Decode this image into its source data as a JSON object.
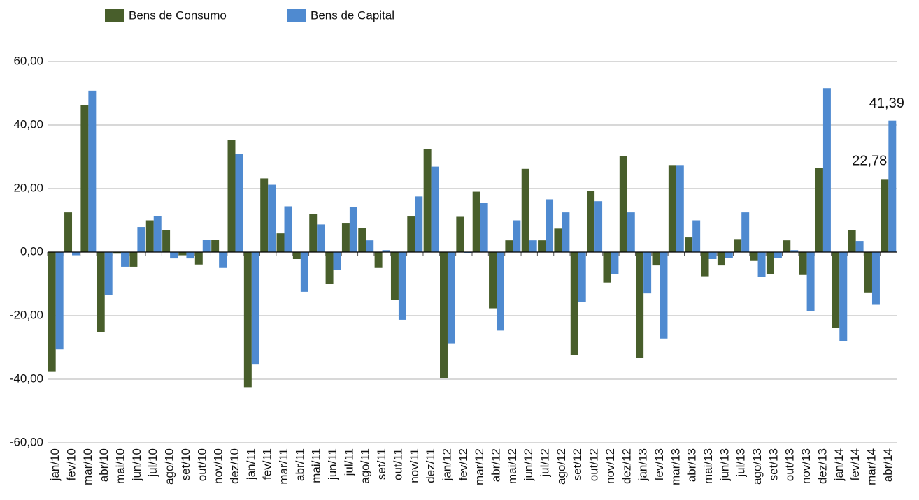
{
  "chart_data": {
    "type": "bar",
    "categories": [
      "jan/10",
      "fev/10",
      "mar/10",
      "abr/10",
      "mai/10",
      "jun/10",
      "jul/10",
      "ago/10",
      "set/10",
      "out/10",
      "nov/10",
      "dez/10",
      "jan/11",
      "fev/11",
      "mar/11",
      "abr/11",
      "mai/11",
      "jun/11",
      "jul/11",
      "ago/11",
      "set/11",
      "out/11",
      "nov/11",
      "dez/11",
      "jan/12",
      "fev/12",
      "mar/12",
      "abr/12",
      "mai/12",
      "jun/12",
      "jul/12",
      "ago/12",
      "set/12",
      "out/12",
      "nov/12",
      "dez/12",
      "jan/13",
      "fev/13",
      "mar/13",
      "abr/13",
      "mai/13",
      "jun/13",
      "jul/13",
      "ago/13",
      "set/13",
      "out/13",
      "nov/13",
      "dez/13",
      "jan/14",
      "fev/14",
      "mar/14",
      "abr/14"
    ],
    "series": [
      {
        "name": "Bens de Consumo",
        "color": "#485e2b",
        "values": [
          -37.5,
          12.5,
          46.2,
          -25.2,
          -0.5,
          -4.6,
          10,
          7,
          -1,
          -3.9,
          3.9,
          35.2,
          -42.5,
          23.2,
          5.9,
          -2.2,
          12,
          -10,
          9,
          7.6,
          -5,
          -15.1,
          11.2,
          32.4,
          -39.6,
          11.1,
          19,
          -17.7,
          3.7,
          26.2,
          3.7,
          7.4,
          -32.4,
          19.3,
          -9.6,
          30.2,
          -33.3,
          -4.2,
          27.4,
          4.6,
          -7.6,
          -4.2,
          4.1,
          -2.8,
          -7,
          3.7,
          -7.2,
          26.5,
          -23.9,
          7,
          -12.7,
          22.78
        ],
        "value_labels": [
          null,
          null,
          null,
          null,
          null,
          null,
          null,
          null,
          null,
          null,
          null,
          null,
          null,
          null,
          null,
          null,
          null,
          null,
          null,
          null,
          null,
          null,
          null,
          null,
          null,
          null,
          null,
          null,
          null,
          null,
          null,
          null,
          null,
          null,
          null,
          null,
          null,
          null,
          null,
          null,
          null,
          null,
          null,
          null,
          null,
          null,
          null,
          null,
          null,
          null,
          null,
          "22,78"
        ]
      },
      {
        "name": "Bens de Capital",
        "color": "#4f8ad0",
        "values": [
          -30.6,
          -1,
          50.8,
          -13.6,
          -4.6,
          7.9,
          11.4,
          -2,
          -2,
          3.9,
          -5,
          30.9,
          -35.2,
          21.2,
          14.4,
          -12.5,
          8.7,
          -5.5,
          14.2,
          3.7,
          0.6,
          -21.3,
          17.5,
          26.9,
          -28.7,
          -0.3,
          15.5,
          -24.7,
          10,
          3.7,
          16.6,
          12.5,
          -15.7,
          16,
          -7,
          12.5,
          -13,
          -27.2,
          27.4,
          10,
          -2.2,
          -1.8,
          12.5,
          -7.9,
          -1.8,
          0.6,
          -18.6,
          51.6,
          -28,
          3.5,
          -16.6,
          41.39
        ],
        "value_labels": [
          null,
          null,
          null,
          null,
          null,
          null,
          null,
          null,
          null,
          null,
          null,
          null,
          null,
          null,
          null,
          null,
          null,
          null,
          null,
          null,
          null,
          null,
          null,
          null,
          null,
          null,
          null,
          null,
          null,
          null,
          null,
          null,
          null,
          null,
          null,
          null,
          null,
          null,
          null,
          null,
          null,
          null,
          null,
          null,
          null,
          null,
          null,
          null,
          null,
          null,
          null,
          "41,39"
        ]
      }
    ],
    "ylim": [
      -60,
      60
    ],
    "yticks": [
      {
        "value": -60,
        "label": "-60,00"
      },
      {
        "value": -40,
        "label": "-40,00"
      },
      {
        "value": -20,
        "label": "-20,00"
      },
      {
        "value": 0,
        "label": "0,00"
      },
      {
        "value": 20,
        "label": "20,00"
      },
      {
        "value": 40,
        "label": "40,00"
      },
      {
        "value": 60,
        "label": "60,00"
      }
    ],
    "grid": true,
    "legend": "top"
  }
}
